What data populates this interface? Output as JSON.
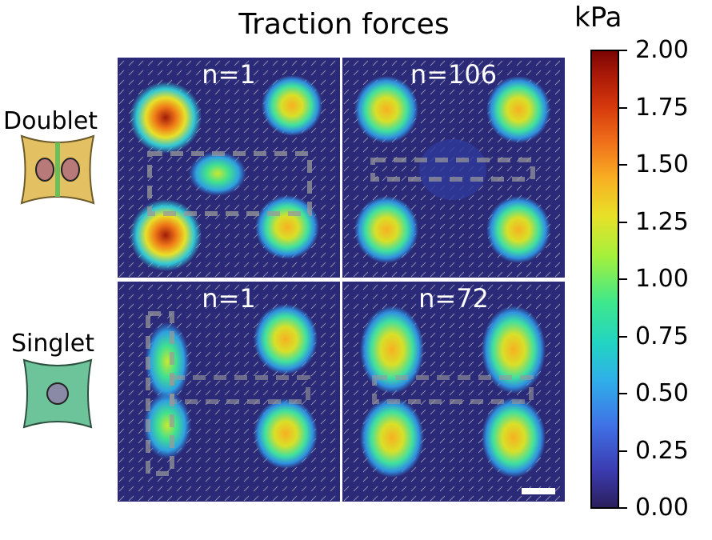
{
  "figure": {
    "title": "Traction forces",
    "rows": [
      {
        "label": "Doublet",
        "panels": [
          {
            "n_label": "n=1"
          },
          {
            "n_label": "n=106"
          }
        ]
      },
      {
        "label": "Singlet",
        "panels": [
          {
            "n_label": "n=1"
          },
          {
            "n_label": "n=72"
          }
        ]
      }
    ]
  },
  "colorbar": {
    "unit": "kPa",
    "range": [
      0,
      2
    ],
    "ticks": [
      "2.00",
      "1.75",
      "1.50",
      "1.25",
      "1.00",
      "0.75",
      "0.50",
      "0.25",
      "0.00"
    ],
    "colormap": "turbo"
  },
  "colors": {
    "background_map": "#2b2a78",
    "doublet_cell": "#e3c062",
    "doublet_junction": "#6bbf5a",
    "nucleus_doublet": "#b87a78",
    "singlet_cell": "#6ec49a",
    "nucleus_singlet": "#8a8aa6",
    "vector_arrows": "#9a9a9a"
  }
}
